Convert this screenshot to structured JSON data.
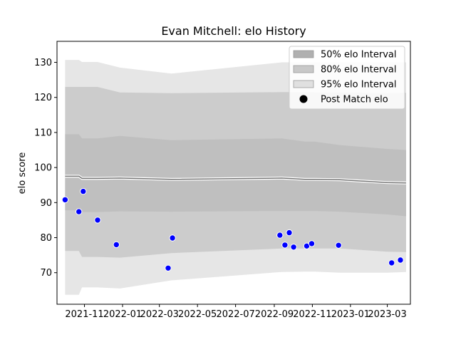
{
  "chart_data": {
    "type": "area",
    "title": "Evan Mitchell: elo History",
    "xlabel": "",
    "ylabel": "elo score",
    "xlim": [
      "2021-09-18",
      "2023-04-07"
    ],
    "ylim": [
      61,
      136
    ],
    "x_ticks": [
      "2021-11",
      "2022-01",
      "2022-03",
      "2022-05",
      "2022-07",
      "2022-09",
      "2022-11",
      "2023-01",
      "2023-03"
    ],
    "y_ticks": [
      70,
      80,
      90,
      100,
      110,
      120,
      130
    ],
    "legend_position": "top-right",
    "band_dates": [
      "2021-10-01",
      "2021-10-23",
      "2021-10-28",
      "2021-11-22",
      "2021-12-28",
      "2022-03-20",
      "2022-09-13",
      "2022-10-20",
      "2022-11-05",
      "2022-12-15",
      "2023-03-01",
      "2023-03-31"
    ],
    "bands": [
      {
        "name": "95% elo Interval",
        "color": "#e6e6e6",
        "upper": [
          130.7,
          130.7,
          130.1,
          130.1,
          128.5,
          126.8,
          130.0,
          130.0,
          130.0,
          130.0,
          130.0,
          130.0
        ],
        "lower": [
          63.7,
          63.7,
          65.8,
          65.8,
          65.5,
          67.8,
          70.2,
          70.3,
          70.3,
          70.0,
          70.0,
          70.2
        ]
      },
      {
        "name": "80% elo Interval",
        "color": "#cccccc",
        "upper": [
          123.0,
          123.0,
          123.0,
          123.0,
          121.4,
          121.2,
          121.5,
          121.5,
          121.4,
          121.4,
          121.2,
          121.3
        ],
        "lower": [
          76.2,
          76.2,
          74.5,
          74.5,
          74.3,
          75.6,
          76.9,
          76.9,
          76.9,
          76.9,
          76.0,
          75.9
        ]
      },
      {
        "name": "50% elo Interval",
        "color": "#bfbfbf",
        "upper": [
          109.5,
          109.5,
          108.3,
          108.3,
          109.0,
          107.8,
          108.3,
          107.4,
          107.4,
          106.4,
          105.3,
          105.0
        ],
        "lower": [
          87.8,
          87.8,
          87.3,
          87.3,
          87.5,
          87.4,
          87.6,
          87.6,
          87.6,
          87.4,
          86.6,
          86.1
        ]
      }
    ],
    "mean_line": [
      97.5,
      97.5,
      96.9,
      96.9,
      97.0,
      96.6,
      97.0,
      96.6,
      96.6,
      96.5,
      95.7,
      95.6
    ],
    "series": [
      {
        "name": "Post Match elo",
        "type": "scatter",
        "color": "#0000ff",
        "points": [
          {
            "x": "2021-10-01",
            "y": 90.8
          },
          {
            "x": "2021-10-23",
            "y": 87.4
          },
          {
            "x": "2021-10-30",
            "y": 93.2
          },
          {
            "x": "2021-11-22",
            "y": 85.0
          },
          {
            "x": "2021-12-22",
            "y": 78.0
          },
          {
            "x": "2022-03-15",
            "y": 71.3
          },
          {
            "x": "2022-03-22",
            "y": 79.9
          },
          {
            "x": "2022-09-10",
            "y": 80.7
          },
          {
            "x": "2022-09-18",
            "y": 77.9
          },
          {
            "x": "2022-09-25",
            "y": 81.4
          },
          {
            "x": "2022-10-02",
            "y": 77.3
          },
          {
            "x": "2022-10-23",
            "y": 77.6
          },
          {
            "x": "2022-10-31",
            "y": 78.3
          },
          {
            "x": "2022-12-13",
            "y": 77.8
          },
          {
            "x": "2023-03-08",
            "y": 72.8
          },
          {
            "x": "2023-03-22",
            "y": 73.6
          }
        ]
      }
    ],
    "legend": [
      {
        "label": "50% elo Interval",
        "kind": "patch",
        "color": "#b0b0b0"
      },
      {
        "label": "80% elo Interval",
        "kind": "patch",
        "color": "#c8c8c8"
      },
      {
        "label": "95% elo Interval",
        "kind": "patch",
        "color": "#e0e0e0"
      },
      {
        "label": "Post Match elo",
        "kind": "marker",
        "color": "#000000"
      }
    ]
  }
}
